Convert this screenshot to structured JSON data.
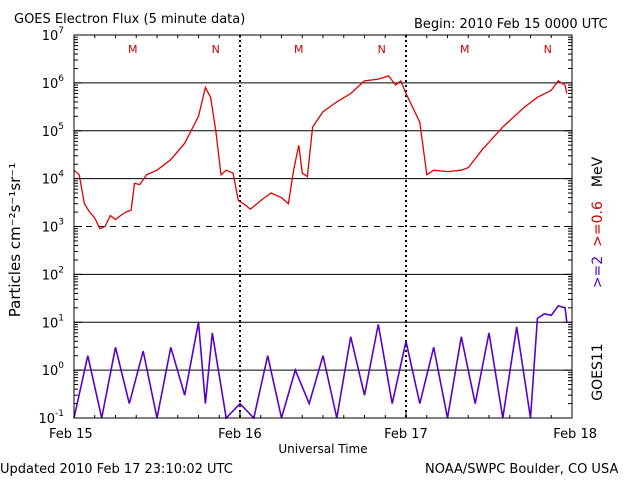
{
  "title": "GOES Electron Flux (5 minute data)",
  "begin_label": "Begin: 2010 Feb 15 0000 UTC",
  "updated_label": "Updated 2010 Feb 17 23:10:02 UTC",
  "credit_label": "NOAA/SWPC Boulder, CO USA",
  "colors": {
    "red_series": "#e00000",
    "purple_series": "#5a00c8",
    "marker": "#cc0000",
    "axes": "#000000"
  },
  "chart_data": {
    "type": "line",
    "title": "GOES Electron Flux (5 minute data)",
    "xlabel": "Universal Time",
    "ylabel": "Particles cm⁻²s⁻¹sr⁻¹",
    "y_scale": "log",
    "ylim": [
      0.1,
      10000000
    ],
    "xlim": [
      "2010-02-15 00:00",
      "2010-02-18 00:00"
    ],
    "x_ticks": [
      "Feb 15",
      "Feb 16",
      "Feb 17",
      "Feb 18"
    ],
    "y_ticks": [
      {
        "base": "10",
        "exp": "-1"
      },
      {
        "base": "10",
        "exp": "0"
      },
      {
        "base": "10",
        "exp": "1"
      },
      {
        "base": "10",
        "exp": "2"
      },
      {
        "base": "10",
        "exp": "3"
      },
      {
        "base": "10",
        "exp": "4"
      },
      {
        "base": "10",
        "exp": "5"
      },
      {
        "base": "10",
        "exp": "6"
      },
      {
        "base": "10",
        "exp": "7"
      }
    ],
    "threshold_line": 1000,
    "markers": [
      {
        "label": "M",
        "time": "2010-02-15 08:30"
      },
      {
        "label": "N",
        "time": "2010-02-15 20:30"
      },
      {
        "label": "M",
        "time": "2010-02-16 08:30"
      },
      {
        "label": "N",
        "time": "2010-02-16 20:30"
      },
      {
        "label": "M",
        "time": "2010-02-17 08:30"
      },
      {
        "label": "N",
        "time": "2010-02-17 20:30"
      }
    ],
    "right_labels": [
      {
        "text": "MeV",
        "color": "#000000"
      },
      {
        "text": ">=2",
        "color": "#5a00c8"
      },
      {
        "text": ">=0.6",
        "color": "#cc0000"
      },
      {
        "text": "GOES11",
        "color": "#000000"
      }
    ],
    "series": [
      {
        "name": ">=0.6 MeV",
        "color": "#e00000",
        "points": [
          [
            "2010-02-15 00:00",
            15000
          ],
          [
            "2010-02-15 00:45",
            12000
          ],
          [
            "2010-02-15 01:30",
            3000
          ],
          [
            "2010-02-15 02:15",
            2000
          ],
          [
            "2010-02-15 03:00",
            1500
          ],
          [
            "2010-02-15 03:45",
            900
          ],
          [
            "2010-02-15 04:30",
            1000
          ],
          [
            "2010-02-15 05:15",
            1700
          ],
          [
            "2010-02-15 06:00",
            1400
          ],
          [
            "2010-02-15 06:45",
            1700
          ],
          [
            "2010-02-15 07:30",
            2000
          ],
          [
            "2010-02-15 08:15",
            2200
          ],
          [
            "2010-02-15 08:45",
            8000
          ],
          [
            "2010-02-15 09:30",
            7500
          ],
          [
            "2010-02-15 10:30",
            12000
          ],
          [
            "2010-02-15 12:00",
            15000
          ],
          [
            "2010-02-15 14:00",
            25000
          ],
          [
            "2010-02-15 16:00",
            55000
          ],
          [
            "2010-02-15 18:00",
            200000
          ],
          [
            "2010-02-15 19:00",
            800000
          ],
          [
            "2010-02-15 19:45",
            500000
          ],
          [
            "2010-02-15 20:30",
            100000
          ],
          [
            "2010-02-15 21:15",
            12000
          ],
          [
            "2010-02-15 22:00",
            15000
          ],
          [
            "2010-02-15 23:00",
            13000
          ],
          [
            "2010-02-15 23:45",
            3500
          ],
          [
            "2010-02-16 00:30",
            3000
          ],
          [
            "2010-02-16 01:30",
            2300
          ],
          [
            "2010-02-16 03:00",
            3500
          ],
          [
            "2010-02-16 04:30",
            5000
          ],
          [
            "2010-02-16 06:00",
            4000
          ],
          [
            "2010-02-16 07:00",
            3000
          ],
          [
            "2010-02-16 07:45",
            15000
          ],
          [
            "2010-02-16 08:30",
            50000
          ],
          [
            "2010-02-16 09:00",
            13000
          ],
          [
            "2010-02-16 09:45",
            11000
          ],
          [
            "2010-02-16 10:30",
            120000
          ],
          [
            "2010-02-16 12:00",
            250000
          ],
          [
            "2010-02-16 14:00",
            400000
          ],
          [
            "2010-02-16 16:00",
            600000
          ],
          [
            "2010-02-16 18:00",
            1100000
          ],
          [
            "2010-02-16 20:00",
            1200000
          ],
          [
            "2010-02-16 21:30",
            1400000
          ],
          [
            "2010-02-16 22:30",
            900000
          ],
          [
            "2010-02-16 23:15",
            1100000
          ],
          [
            "2010-02-17 00:00",
            600000
          ],
          [
            "2010-02-17 01:00",
            300000
          ],
          [
            "2010-02-17 02:00",
            150000
          ],
          [
            "2010-02-17 03:00",
            12000
          ],
          [
            "2010-02-17 04:00",
            15000
          ],
          [
            "2010-02-17 06:00",
            14000
          ],
          [
            "2010-02-17 08:00",
            15000
          ],
          [
            "2010-02-17 09:00",
            17000
          ],
          [
            "2010-02-17 11:00",
            40000
          ],
          [
            "2010-02-17 14:00",
            120000
          ],
          [
            "2010-02-17 17:00",
            300000
          ],
          [
            "2010-02-17 19:00",
            500000
          ],
          [
            "2010-02-17 21:00",
            700000
          ],
          [
            "2010-02-17 22:00",
            1100000
          ],
          [
            "2010-02-17 23:00",
            900000
          ],
          [
            "2010-02-17 23:15",
            600000
          ]
        ]
      },
      {
        "name": ">=2 MeV",
        "color": "#5a00c8",
        "points": [
          [
            "2010-02-15 00:00",
            0.1
          ],
          [
            "2010-02-15 02:00",
            2
          ],
          [
            "2010-02-15 04:00",
            0.1
          ],
          [
            "2010-02-15 06:00",
            3
          ],
          [
            "2010-02-15 08:00",
            0.2
          ],
          [
            "2010-02-15 10:00",
            2.5
          ],
          [
            "2010-02-15 12:00",
            0.1
          ],
          [
            "2010-02-15 14:00",
            3
          ],
          [
            "2010-02-15 16:00",
            0.3
          ],
          [
            "2010-02-15 18:00",
            10
          ],
          [
            "2010-02-15 19:00",
            0.2
          ],
          [
            "2010-02-15 20:00",
            6
          ],
          [
            "2010-02-15 22:00",
            0.1
          ],
          [
            "2010-02-16 00:00",
            0.2
          ],
          [
            "2010-02-16 02:00",
            0.1
          ],
          [
            "2010-02-16 04:00",
            2
          ],
          [
            "2010-02-16 06:00",
            0.1
          ],
          [
            "2010-02-16 08:00",
            1
          ],
          [
            "2010-02-16 10:00",
            0.2
          ],
          [
            "2010-02-16 12:00",
            2
          ],
          [
            "2010-02-16 14:00",
            0.1
          ],
          [
            "2010-02-16 16:00",
            5
          ],
          [
            "2010-02-16 18:00",
            0.3
          ],
          [
            "2010-02-16 20:00",
            9
          ],
          [
            "2010-02-16 22:00",
            0.2
          ],
          [
            "2010-02-17 00:00",
            4
          ],
          [
            "2010-02-17 02:00",
            0.2
          ],
          [
            "2010-02-17 04:00",
            3
          ],
          [
            "2010-02-17 06:00",
            0.1
          ],
          [
            "2010-02-17 08:00",
            5
          ],
          [
            "2010-02-17 10:00",
            0.2
          ],
          [
            "2010-02-17 12:00",
            6
          ],
          [
            "2010-02-17 14:00",
            0.1
          ],
          [
            "2010-02-17 16:00",
            8
          ],
          [
            "2010-02-17 18:00",
            0.1
          ],
          [
            "2010-02-17 19:00",
            12
          ],
          [
            "2010-02-17 20:00",
            15
          ],
          [
            "2010-02-17 21:00",
            14
          ],
          [
            "2010-02-17 22:00",
            22
          ],
          [
            "2010-02-17 23:00",
            20
          ],
          [
            "2010-02-17 23:15",
            10
          ]
        ]
      }
    ]
  }
}
